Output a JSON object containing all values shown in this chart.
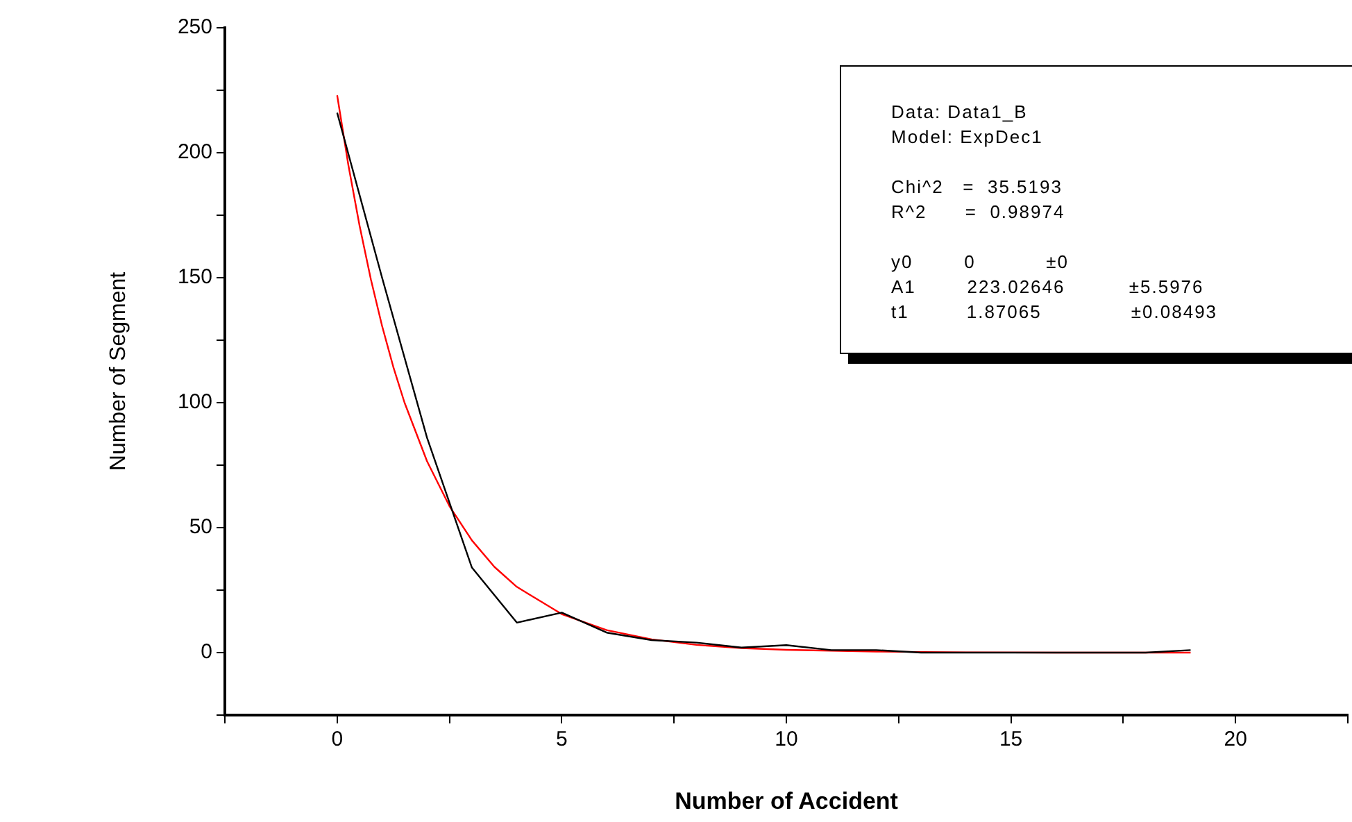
{
  "chart_data": {
    "type": "line",
    "xlabel": "Number of Accident",
    "ylabel": "Number of Segment",
    "xlim": [
      -2.5,
      22.5
    ],
    "xticks": [
      {
        "value": -2.5,
        "label": null
      },
      0,
      {
        "value": 2.5,
        "label": null
      },
      5,
      {
        "value": 7.5,
        "label": null
      },
      10,
      {
        "value": 12.5,
        "label": null
      },
      15,
      {
        "value": 17.5,
        "label": null
      },
      20,
      {
        "value": 22.5,
        "label": null
      }
    ],
    "ylim": [
      -25,
      250
    ],
    "yticks": [
      {
        "value": -25,
        "label": null
      },
      0,
      {
        "value": 25,
        "label": null
      },
      50,
      {
        "value": 75,
        "label": null
      },
      100,
      {
        "value": 125,
        "label": null
      },
      150,
      {
        "value": 175,
        "label": null
      },
      200,
      {
        "value": 225,
        "label": null
      },
      250
    ],
    "grid": false,
    "legend": false,
    "marker": "none",
    "line_style": "solid",
    "series": [
      {
        "color": "#000000",
        "x": [
          0,
          1,
          2,
          3,
          4,
          5,
          6,
          7,
          8,
          9,
          10,
          11,
          12,
          13,
          14,
          15,
          16,
          17,
          18,
          19
        ],
        "values": [
          216,
          150,
          86,
          34,
          12,
          16,
          8,
          5,
          4,
          2,
          3,
          1,
          1,
          0,
          0,
          0,
          0,
          0,
          0,
          1
        ]
      },
      {
        "color": "#ff0000",
        "x": [
          0,
          0.25,
          0.5,
          0.75,
          1,
          1.25,
          1.5,
          2,
          2.5,
          3,
          3.5,
          4,
          5,
          6,
          7,
          8,
          9,
          10,
          12,
          14,
          16,
          19
        ],
        "values": [
          223.0,
          195.0,
          170.7,
          149.4,
          130.7,
          114.3,
          100.0,
          76.6,
          58.6,
          44.9,
          34.3,
          26.3,
          15.4,
          9.0,
          5.3,
          3.1,
          1.8,
          1.1,
          0.4,
          0.1,
          0.0,
          0.0
        ]
      }
    ],
    "annotations": [
      "Data: Data1_B",
      "Model: ExpDec1",
      "Chi^2   =  35.5193",
      "R^2      =  0.98974",
      "y0        0           ±0",
      "A1        223.02646          ±5.5976",
      "t1         1.87065              ±0.08493"
    ]
  }
}
